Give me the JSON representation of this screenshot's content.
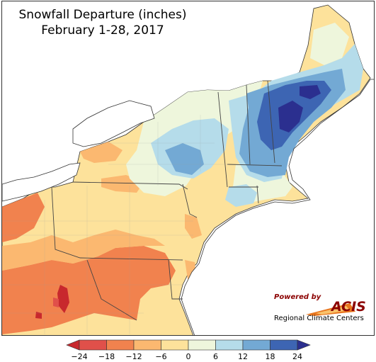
{
  "title": {
    "line1": "Snowfall Departure (inches)",
    "line2": "February 1-28, 2017"
  },
  "logo": {
    "powered_by": "Powered by",
    "brand": "ACIS",
    "subtitle": "Regional Climate Centers"
  },
  "legend": {
    "bins": [
      {
        "label": "< -24",
        "color": "#c8282d"
      },
      {
        "label": "-24 to -18",
        "color": "#e0504a"
      },
      {
        "label": "-18 to -12",
        "color": "#f1824e"
      },
      {
        "label": "-12 to -6",
        "color": "#fbb870"
      },
      {
        "label": "-6 to 0",
        "color": "#fde29b"
      },
      {
        "label": "0 to 6",
        "color": "#eef6dc"
      },
      {
        "label": "6 to 12",
        "color": "#b5dcea"
      },
      {
        "label": "12 to 18",
        "color": "#73a9d4"
      },
      {
        "label": "18 to 24",
        "color": "#3d65b3"
      },
      {
        "label": "> 24",
        "color": "#2b2f8f"
      }
    ],
    "ticks": [
      "−24",
      "−18",
      "−12",
      "−6",
      "0",
      "6",
      "12",
      "18",
      "24"
    ]
  }
}
